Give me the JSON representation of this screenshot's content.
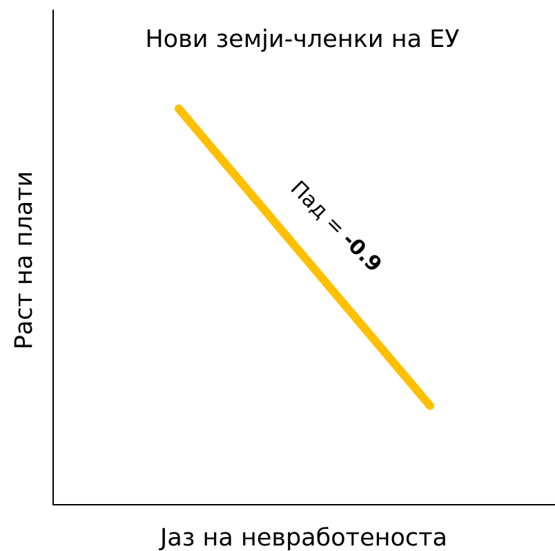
{
  "chart_data": {
    "type": "line",
    "title": "Нови земји-членки на ЕУ",
    "xlabel": "Јаз на невработеноста",
    "ylabel": "Раст на плати",
    "series": [
      {
        "color": "#FFC000",
        "x": [
          0.25,
          0.75
        ],
        "y": [
          0.8,
          0.2
        ]
      }
    ],
    "xlim": [
      0,
      1
    ],
    "ylim": [
      0,
      1
    ],
    "grid": false,
    "annotation": {
      "label": "Пад = ",
      "value": "-0.9"
    }
  }
}
